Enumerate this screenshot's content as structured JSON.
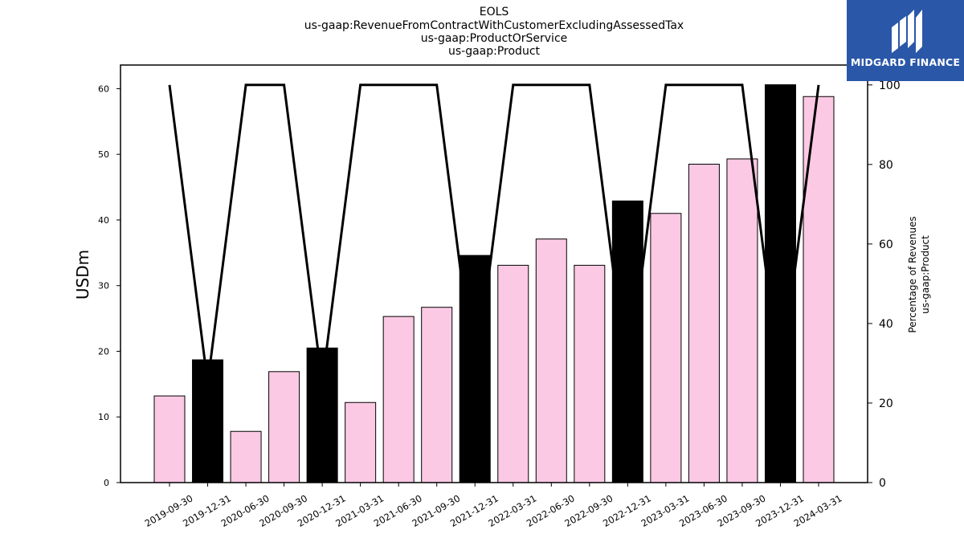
{
  "chart_data": {
    "type": "bar",
    "title_lines": [
      "EOLS",
      "us-gaap:RevenueFromContractWithCustomerExcludingAssessedTax",
      "us-gaap:ProductOrService",
      "us-gaap:Product"
    ],
    "ylabel": "USDm",
    "y2label_lines": [
      "Percentage of Revenues",
      "us-gaap:Product"
    ],
    "categories": [
      "2019-09-30",
      "2019-12-31",
      "2020-06-30",
      "2020-09-30",
      "2020-12-31",
      "2021-03-31",
      "2021-06-30",
      "2021-09-30",
      "2021-12-31",
      "2022-03-31",
      "2022-06-30",
      "2022-09-30",
      "2022-12-31",
      "2023-03-31",
      "2023-06-30",
      "2023-09-30",
      "2023-12-31",
      "2024-03-31"
    ],
    "values": [
      13.2,
      18.7,
      7.8,
      16.9,
      20.5,
      12.2,
      25.3,
      26.7,
      34.6,
      33.1,
      37.1,
      33.1,
      42.9,
      41.0,
      48.5,
      49.3,
      60.6,
      58.8
    ],
    "bar_colors": [
      "#fbc9e4",
      "#000000",
      "#fbc9e4",
      "#fbc9e4",
      "#000000",
      "#fbc9e4",
      "#fbc9e4",
      "#fbc9e4",
      "#000000",
      "#fbc9e4",
      "#fbc9e4",
      "#fbc9e4",
      "#000000",
      "#fbc9e4",
      "#fbc9e4",
      "#fbc9e4",
      "#000000",
      "#fbc9e4"
    ],
    "percentage_line": [
      100,
      25,
      100,
      100,
      25,
      100,
      100,
      100,
      25,
      100,
      100,
      100,
      25,
      100,
      100,
      100,
      25,
      100
    ],
    "ylim": [
      0,
      63.6
    ],
    "y_ticks": [
      0,
      10,
      20,
      30,
      40,
      50,
      60
    ],
    "y2lim": [
      0,
      105
    ],
    "y2_ticks": [
      0,
      20,
      40,
      60,
      80,
      100
    ],
    "grid": false
  },
  "logo": {
    "text": "MIDGARD FINANCE",
    "bg": "#2a57a8"
  }
}
